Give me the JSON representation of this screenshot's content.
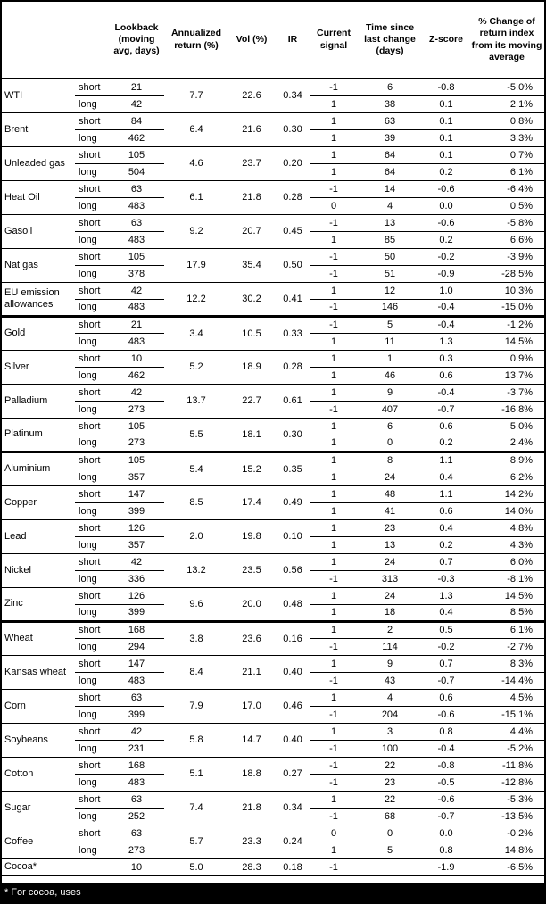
{
  "colors": {
    "background": "#ffffff",
    "border": "#000000",
    "footer_bg": "#000000",
    "footer_text": "#ffffff"
  },
  "footnote": "* For cocoa, uses",
  "table": {
    "headers": [
      {
        "id": "commodity",
        "label": ""
      },
      {
        "id": "leg",
        "label": ""
      },
      {
        "id": "lookback",
        "label": "Lookback (moving avg, days)"
      },
      {
        "id": "ann_return",
        "label": "Annualized return (%)"
      },
      {
        "id": "vol",
        "label": "Vol (%)"
      },
      {
        "id": "ir",
        "label": "IR"
      },
      {
        "id": "signal",
        "label": "Current signal"
      },
      {
        "id": "time_since",
        "label": "Time since last change (days)"
      },
      {
        "id": "zscore",
        "label": "Z-score"
      },
      {
        "id": "pct_change",
        "label": "% Change of return index from its moving average"
      }
    ],
    "groups": [
      {
        "name": "WTI",
        "sector_end": false,
        "ann_return": "7.7",
        "vol": "22.6",
        "ir": "0.34",
        "legs": [
          {
            "leg": "short",
            "lookback": "21",
            "signal": "-1",
            "time_since": "6",
            "zscore": "-0.8",
            "pct_change": "-5.0%"
          },
          {
            "leg": "long",
            "lookback": "42",
            "signal": "1",
            "time_since": "38",
            "zscore": "0.1",
            "pct_change": "2.1%"
          }
        ]
      },
      {
        "name": "Brent",
        "sector_end": false,
        "ann_return": "6.4",
        "vol": "21.6",
        "ir": "0.30",
        "legs": [
          {
            "leg": "short",
            "lookback": "84",
            "signal": "1",
            "time_since": "63",
            "zscore": "0.1",
            "pct_change": "0.8%"
          },
          {
            "leg": "long",
            "lookback": "462",
            "signal": "1",
            "time_since": "39",
            "zscore": "0.1",
            "pct_change": "3.3%"
          }
        ]
      },
      {
        "name": "Unleaded gas",
        "sector_end": false,
        "ann_return": "4.6",
        "vol": "23.7",
        "ir": "0.20",
        "legs": [
          {
            "leg": "short",
            "lookback": "105",
            "signal": "1",
            "time_since": "64",
            "zscore": "0.1",
            "pct_change": "0.7%"
          },
          {
            "leg": "long",
            "lookback": "504",
            "signal": "1",
            "time_since": "64",
            "zscore": "0.2",
            "pct_change": "6.1%"
          }
        ]
      },
      {
        "name": "Heat Oil",
        "sector_end": false,
        "ann_return": "6.1",
        "vol": "21.8",
        "ir": "0.28",
        "legs": [
          {
            "leg": "short",
            "lookback": "63",
            "signal": "-1",
            "time_since": "14",
            "zscore": "-0.6",
            "pct_change": "-6.4%"
          },
          {
            "leg": "long",
            "lookback": "483",
            "signal": "0",
            "time_since": "4",
            "zscore": "0.0",
            "pct_change": "0.5%"
          }
        ]
      },
      {
        "name": "Gasoil",
        "sector_end": false,
        "ann_return": "9.2",
        "vol": "20.7",
        "ir": "0.45",
        "legs": [
          {
            "leg": "short",
            "lookback": "63",
            "signal": "-1",
            "time_since": "13",
            "zscore": "-0.6",
            "pct_change": "-5.8%"
          },
          {
            "leg": "long",
            "lookback": "483",
            "signal": "1",
            "time_since": "85",
            "zscore": "0.2",
            "pct_change": "6.6%"
          }
        ]
      },
      {
        "name": "Nat gas",
        "sector_end": false,
        "ann_return": "17.9",
        "vol": "35.4",
        "ir": "0.50",
        "legs": [
          {
            "leg": "short",
            "lookback": "105",
            "signal": "-1",
            "time_since": "50",
            "zscore": "-0.2",
            "pct_change": "-3.9%"
          },
          {
            "leg": "long",
            "lookback": "378",
            "signal": "-1",
            "time_since": "51",
            "zscore": "-0.9",
            "pct_change": "-28.5%"
          }
        ]
      },
      {
        "name": "EU emission allowances",
        "sector_end": true,
        "ann_return": "12.2",
        "vol": "30.2",
        "ir": "0.41",
        "legs": [
          {
            "leg": "short",
            "lookback": "42",
            "signal": "1",
            "time_since": "12",
            "zscore": "1.0",
            "pct_change": "10.3%"
          },
          {
            "leg": "long",
            "lookback": "483",
            "signal": "-1",
            "time_since": "146",
            "zscore": "-0.4",
            "pct_change": "-15.0%"
          }
        ]
      },
      {
        "name": "Gold",
        "sector_end": false,
        "ann_return": "3.4",
        "vol": "10.5",
        "ir": "0.33",
        "legs": [
          {
            "leg": "short",
            "lookback": "21",
            "signal": "-1",
            "time_since": "5",
            "zscore": "-0.4",
            "pct_change": "-1.2%"
          },
          {
            "leg": "long",
            "lookback": "483",
            "signal": "1",
            "time_since": "11",
            "zscore": "1.3",
            "pct_change": "14.5%"
          }
        ]
      },
      {
        "name": "Silver",
        "sector_end": false,
        "ann_return": "5.2",
        "vol": "18.9",
        "ir": "0.28",
        "legs": [
          {
            "leg": "short",
            "lookback": "10",
            "signal": "1",
            "time_since": "1",
            "zscore": "0.3",
            "pct_change": "0.9%"
          },
          {
            "leg": "long",
            "lookback": "462",
            "signal": "1",
            "time_since": "46",
            "zscore": "0.6",
            "pct_change": "13.7%"
          }
        ]
      },
      {
        "name": "Palladium",
        "sector_end": false,
        "ann_return": "13.7",
        "vol": "22.7",
        "ir": "0.61",
        "legs": [
          {
            "leg": "short",
            "lookback": "42",
            "signal": "1",
            "time_since": "9",
            "zscore": "-0.4",
            "pct_change": "-3.7%"
          },
          {
            "leg": "long",
            "lookback": "273",
            "signal": "-1",
            "time_since": "407",
            "zscore": "-0.7",
            "pct_change": "-16.8%"
          }
        ]
      },
      {
        "name": "Platinum",
        "sector_end": true,
        "ann_return": "5.5",
        "vol": "18.1",
        "ir": "0.30",
        "legs": [
          {
            "leg": "short",
            "lookback": "105",
            "signal": "1",
            "time_since": "6",
            "zscore": "0.6",
            "pct_change": "5.0%"
          },
          {
            "leg": "long",
            "lookback": "273",
            "signal": "1",
            "time_since": "0",
            "zscore": "0.2",
            "pct_change": "2.4%"
          }
        ]
      },
      {
        "name": "Aluminium",
        "sector_end": false,
        "ann_return": "5.4",
        "vol": "15.2",
        "ir": "0.35",
        "legs": [
          {
            "leg": "short",
            "lookback": "105",
            "signal": "1",
            "time_since": "8",
            "zscore": "1.1",
            "pct_change": "8.9%"
          },
          {
            "leg": "long",
            "lookback": "357",
            "signal": "1",
            "time_since": "24",
            "zscore": "0.4",
            "pct_change": "6.2%"
          }
        ]
      },
      {
        "name": "Copper",
        "sector_end": false,
        "ann_return": "8.5",
        "vol": "17.4",
        "ir": "0.49",
        "legs": [
          {
            "leg": "short",
            "lookback": "147",
            "signal": "1",
            "time_since": "48",
            "zscore": "1.1",
            "pct_change": "14.2%"
          },
          {
            "leg": "long",
            "lookback": "399",
            "signal": "1",
            "time_since": "41",
            "zscore": "0.6",
            "pct_change": "14.0%"
          }
        ]
      },
      {
        "name": "Lead",
        "sector_end": false,
        "ann_return": "2.0",
        "vol": "19.8",
        "ir": "0.10",
        "legs": [
          {
            "leg": "short",
            "lookback": "126",
            "signal": "1",
            "time_since": "23",
            "zscore": "0.4",
            "pct_change": "4.8%"
          },
          {
            "leg": "long",
            "lookback": "357",
            "signal": "1",
            "time_since": "13",
            "zscore": "0.2",
            "pct_change": "4.3%"
          }
        ]
      },
      {
        "name": "Nickel",
        "sector_end": false,
        "ann_return": "13.2",
        "vol": "23.5",
        "ir": "0.56",
        "legs": [
          {
            "leg": "short",
            "lookback": "42",
            "signal": "1",
            "time_since": "24",
            "zscore": "0.7",
            "pct_change": "6.0%"
          },
          {
            "leg": "long",
            "lookback": "336",
            "signal": "-1",
            "time_since": "313",
            "zscore": "-0.3",
            "pct_change": "-8.1%"
          }
        ]
      },
      {
        "name": "Zinc",
        "sector_end": true,
        "ann_return": "9.6",
        "vol": "20.0",
        "ir": "0.48",
        "legs": [
          {
            "leg": "short",
            "lookback": "126",
            "signal": "1",
            "time_since": "24",
            "zscore": "1.3",
            "pct_change": "14.5%"
          },
          {
            "leg": "long",
            "lookback": "399",
            "signal": "1",
            "time_since": "18",
            "zscore": "0.4",
            "pct_change": "8.5%"
          }
        ]
      },
      {
        "name": "Wheat",
        "sector_end": false,
        "ann_return": "3.8",
        "vol": "23.6",
        "ir": "0.16",
        "legs": [
          {
            "leg": "short",
            "lookback": "168",
            "signal": "1",
            "time_since": "2",
            "zscore": "0.5",
            "pct_change": "6.1%"
          },
          {
            "leg": "long",
            "lookback": "294",
            "signal": "-1",
            "time_since": "114",
            "zscore": "-0.2",
            "pct_change": "-2.7%"
          }
        ]
      },
      {
        "name": "Kansas wheat",
        "sector_end": false,
        "ann_return": "8.4",
        "vol": "21.1",
        "ir": "0.40",
        "legs": [
          {
            "leg": "short",
            "lookback": "147",
            "signal": "1",
            "time_since": "9",
            "zscore": "0.7",
            "pct_change": "8.3%"
          },
          {
            "leg": "long",
            "lookback": "483",
            "signal": "-1",
            "time_since": "43",
            "zscore": "-0.7",
            "pct_change": "-14.4%"
          }
        ]
      },
      {
        "name": "Corn",
        "sector_end": false,
        "ann_return": "7.9",
        "vol": "17.0",
        "ir": "0.46",
        "legs": [
          {
            "leg": "short",
            "lookback": "63",
            "signal": "1",
            "time_since": "4",
            "zscore": "0.6",
            "pct_change": "4.5%"
          },
          {
            "leg": "long",
            "lookback": "399",
            "signal": "-1",
            "time_since": "204",
            "zscore": "-0.6",
            "pct_change": "-15.1%"
          }
        ]
      },
      {
        "name": "Soybeans",
        "sector_end": false,
        "ann_return": "5.8",
        "vol": "14.7",
        "ir": "0.40",
        "legs": [
          {
            "leg": "short",
            "lookback": "42",
            "signal": "1",
            "time_since": "3",
            "zscore": "0.8",
            "pct_change": "4.4%"
          },
          {
            "leg": "long",
            "lookback": "231",
            "signal": "-1",
            "time_since": "100",
            "zscore": "-0.4",
            "pct_change": "-5.2%"
          }
        ]
      },
      {
        "name": "Cotton",
        "sector_end": false,
        "ann_return": "5.1",
        "vol": "18.8",
        "ir": "0.27",
        "legs": [
          {
            "leg": "short",
            "lookback": "168",
            "signal": "-1",
            "time_since": "22",
            "zscore": "-0.8",
            "pct_change": "-11.8%"
          },
          {
            "leg": "long",
            "lookback": "483",
            "signal": "-1",
            "time_since": "23",
            "zscore": "-0.5",
            "pct_change": "-12.8%"
          }
        ]
      },
      {
        "name": "Sugar",
        "sector_end": false,
        "ann_return": "7.4",
        "vol": "21.8",
        "ir": "0.34",
        "legs": [
          {
            "leg": "short",
            "lookback": "63",
            "signal": "1",
            "time_since": "22",
            "zscore": "-0.6",
            "pct_change": "-5.3%"
          },
          {
            "leg": "long",
            "lookback": "252",
            "signal": "-1",
            "time_since": "68",
            "zscore": "-0.7",
            "pct_change": "-13.5%"
          }
        ]
      },
      {
        "name": "Coffee",
        "sector_end": false,
        "ann_return": "5.7",
        "vol": "23.3",
        "ir": "0.24",
        "legs": [
          {
            "leg": "short",
            "lookback": "63",
            "signal": "0",
            "time_since": "0",
            "zscore": "0.0",
            "pct_change": "-0.2%"
          },
          {
            "leg": "long",
            "lookback": "273",
            "signal": "1",
            "time_since": "5",
            "zscore": "0.8",
            "pct_change": "14.8%"
          }
        ]
      },
      {
        "name": "Cocoa*",
        "sector_end": false,
        "ann_return": "5.0",
        "vol": "28.3",
        "ir": "0.18",
        "legs": [
          {
            "leg": "",
            "lookback": "10",
            "signal": "-1",
            "time_since": "",
            "zscore": "-1.9",
            "pct_change": "-6.5%"
          }
        ]
      }
    ]
  }
}
